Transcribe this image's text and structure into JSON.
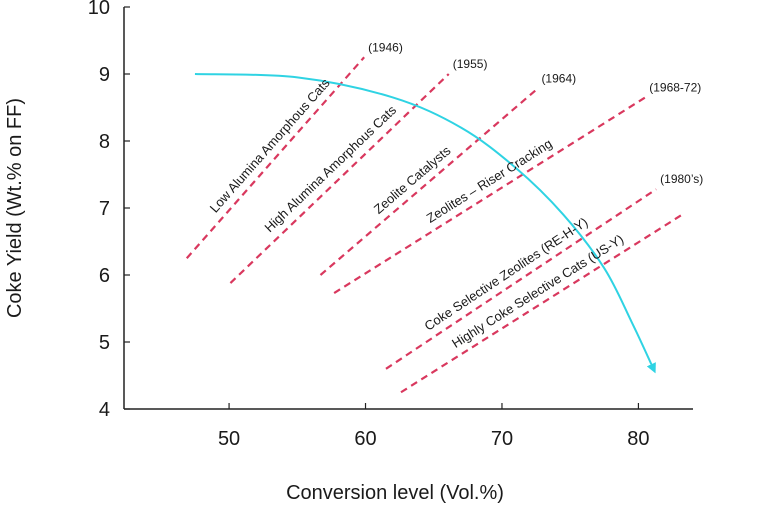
{
  "chart_data": {
    "type": "line",
    "title": "",
    "xlabel": "Conversion level (Vol.%)",
    "ylabel": "Coke Yield (Wt.% on FF)",
    "xlim": [
      42.3,
      84
    ],
    "ylim": [
      4,
      10
    ],
    "xticks": [
      50,
      60,
      70,
      80
    ],
    "yticks": [
      4,
      5,
      6,
      7,
      8,
      9,
      10
    ],
    "grid": false,
    "colors": {
      "catalyst_line": "#d9385e",
      "trend_arrow": "#2fd3e3",
      "axis": "#222222"
    },
    "series": [
      {
        "name": "Low Alumina Amorphous Cats",
        "year": "(1946)",
        "x": [
          46.9,
          59.9
        ],
        "y": [
          6.25,
          9.25
        ]
      },
      {
        "name": "High Alumina Amorphous Cats",
        "year": "(1955)",
        "x": [
          50.1,
          66.1
        ],
        "y": [
          5.88,
          9.0
        ]
      },
      {
        "name": "Zeolite Catalysts",
        "year": "(1964)",
        "x": [
          56.7,
          72.6
        ],
        "y": [
          6.0,
          8.78
        ]
      },
      {
        "name": "Zeolites – Riser Cracking",
        "year": "(1968-72)",
        "x": [
          57.7,
          80.5
        ],
        "y": [
          5.73,
          8.65
        ]
      },
      {
        "name": "Coke Selective Zeolites (RE-H-Y)",
        "year": "(1980’s)",
        "x": [
          61.5,
          81.3
        ],
        "y": [
          4.6,
          7.28
        ]
      },
      {
        "name": "Highly Coke Selective Cats (US-Y)",
        "year": "",
        "x": [
          62.6,
          83.2
        ],
        "y": [
          4.25,
          6.9
        ]
      }
    ],
    "trend_curve": {
      "name": "trend-arrow",
      "x": [
        47.5,
        55,
        62,
        67,
        71,
        74.5,
        77.5,
        79.5,
        81.1
      ],
      "y": [
        9.0,
        8.95,
        8.65,
        8.2,
        7.6,
        6.9,
        6.1,
        5.3,
        4.6
      ]
    }
  }
}
